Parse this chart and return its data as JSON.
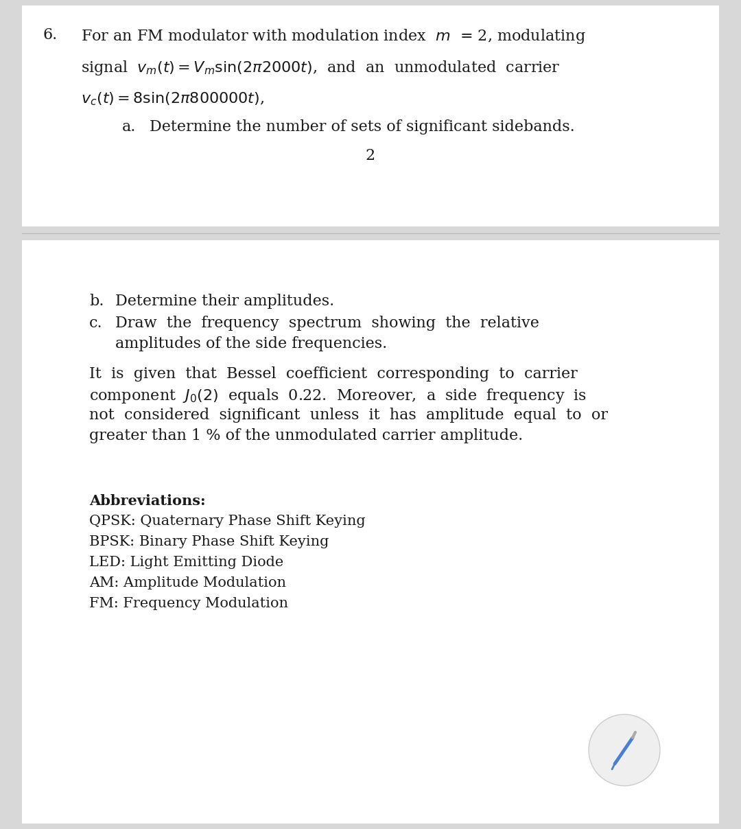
{
  "bg_color": "#d8d8d8",
  "card1_bg": "#ffffff",
  "card2_bg": "#ffffff",
  "text_color": "#1a1a1a",
  "font_size_main": 16,
  "font_size_abbrev": 15,
  "pencil_color": "#4a7fd4",
  "pencil_circle_color": "#efefef",
  "question_number": "6.",
  "line1": "For an FM modulator with modulation index  $m$  = 2, modulating",
  "line2": "signal  $v_m(t) = V_m \\sin(2\\pi 2000t)$,  and  an  unmodulated  carrier",
  "line3": "$v_c(t) = 8\\sin(2\\pi 800000t)$,",
  "part_a_label": "a.",
  "part_a_text": "Determine the number of sets of significant sidebands.",
  "part_a_answer": "2",
  "part_b_label": "b.",
  "part_b_text": "Determine their amplitudes.",
  "part_c_label": "c.",
  "part_c_line1": "Draw  the  frequency  spectrum  showing  the  relative",
  "part_c_line2": "amplitudes of the side frequencies.",
  "note_line1": "It  is  given  that  Bessel  coefficient  corresponding  to  carrier",
  "note_line2": "component  $J_0(2)$  equals  0.22.  Moreover,  a  side  frequency  is",
  "note_line3": "not  considered  significant  unless  it  has  amplitude  equal  to  or",
  "note_line4": "greater than 1 % of the unmodulated carrier amplitude.",
  "abbrev_title": "Abbreviations:",
  "abbrev_lines": [
    "QPSK: Quaternary Phase Shift Keying",
    "BPSK: Binary Phase Shift Keying",
    "LED: Light Emitting Diode",
    "AM: Amplitude Modulation",
    "FM: Frequency Modulation"
  ]
}
